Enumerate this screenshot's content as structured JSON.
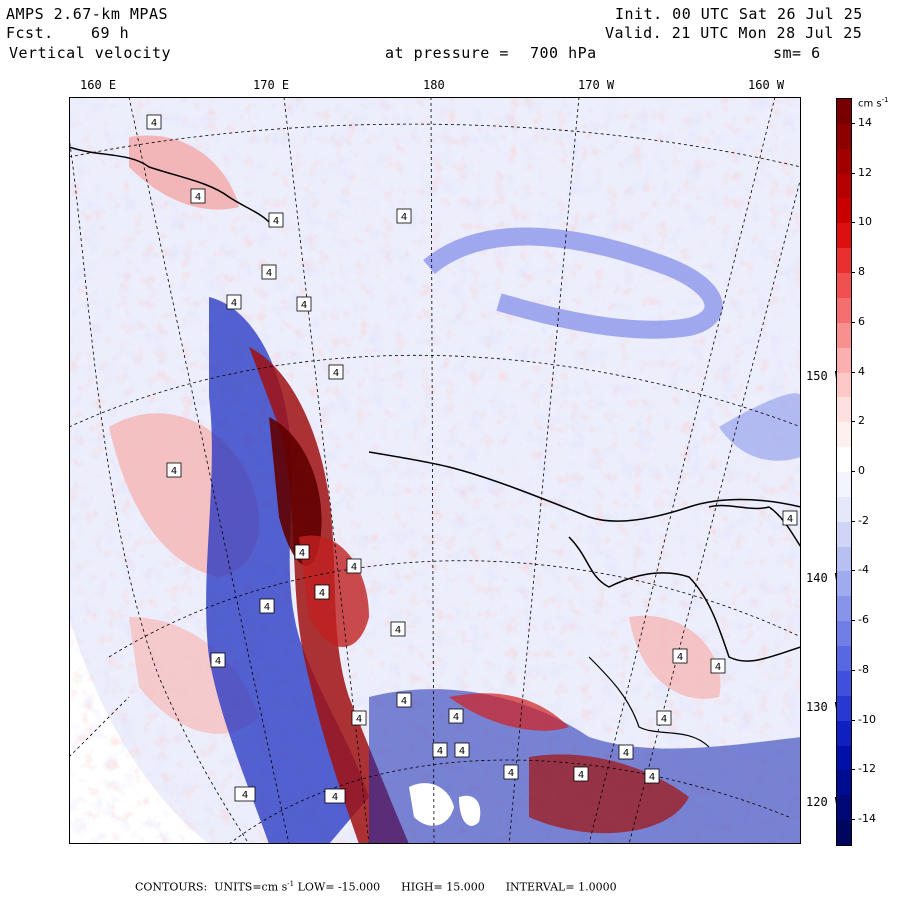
{
  "header": {
    "model": "AMPS 2.67-km MPAS",
    "fcst_label": "Fcst.",
    "fcst_value": "69 h",
    "field": "Vertical velocity",
    "level_label": "at pressure =",
    "level_value": "700 hPa",
    "init": "Init. 00 UTC Sat 26 Jul 25",
    "valid": "Valid. 21 UTC Mon 28 Jul 25",
    "smoothing": "sm= 6"
  },
  "map": {
    "top_lon_labels": [
      "160 E",
      "170 E",
      "180",
      "170 W",
      "160 W"
    ],
    "right_lon_labels": [
      "150 W",
      "140 W",
      "130 W",
      "120 W"
    ],
    "box_label": "4",
    "colors": {
      "strong_red": "#8b0000",
      "red": "#e83030",
      "light_red": "#f4a0a0",
      "pale_red": "#fde0e0",
      "pale_blue": "#e6e8fa",
      "light_blue": "#a8b0ee",
      "blue": "#5060e0",
      "strong_blue": "#001090",
      "grid_line": "#000000"
    }
  },
  "colorbar": {
    "units": "cm s",
    "units_exp": "-1",
    "ticks": [
      "14",
      "12",
      "10",
      "8",
      "6",
      "4",
      "2",
      "0",
      "-2",
      "-4",
      "-6",
      "-8",
      "-10",
      "-12",
      "-14"
    ],
    "colors": [
      "#780000",
      "#8c0000",
      "#a00000",
      "#b40000",
      "#c80000",
      "#dc1010",
      "#e83030",
      "#f05050",
      "#f47070",
      "#f89090",
      "#fab0b0",
      "#fcc8c8",
      "#fde0e0",
      "#fff0f0",
      "#ffffff",
      "#f4f4fe",
      "#e6e8fa",
      "#d0d4f6",
      "#b8c0f2",
      "#a0aaee",
      "#8894ea",
      "#707ee6",
      "#5868e2",
      "#4050dc",
      "#2838d0",
      "#1020c0",
      "#0010a8",
      "#000c90",
      "#000878",
      "#000660"
    ]
  },
  "footer": {
    "contours_label": "CONTOURS:",
    "units_label": "UNITS=cm s",
    "units_exp": "-1",
    "low": "LOW= -15.000",
    "high": "HIGH= 15.000",
    "interval": "INTERVAL= 1.0000"
  }
}
